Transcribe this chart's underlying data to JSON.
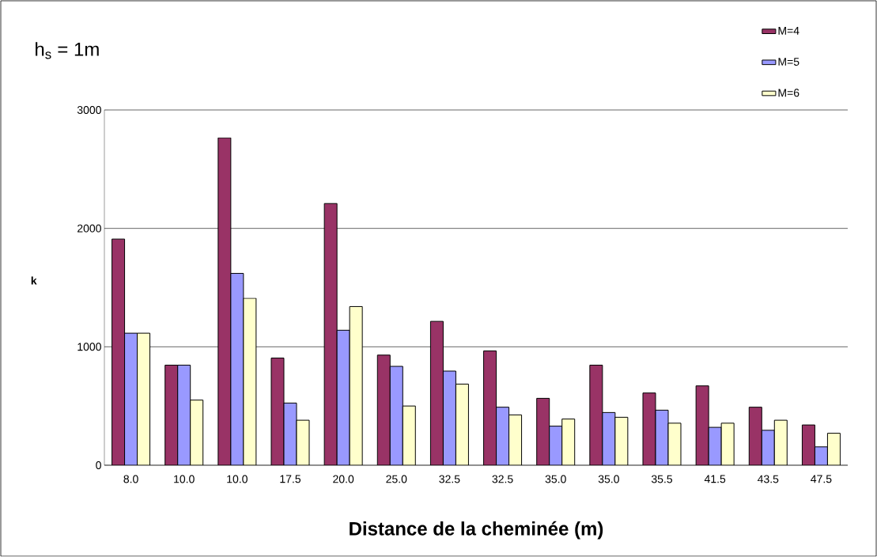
{
  "chart_data": {
    "type": "bar",
    "title": "h$_{s}$ = 1m",
    "xlabel": "Distance de la cheminée (m)",
    "ylabel": "k",
    "categories": [
      "8.0",
      "10.0",
      "10.0",
      "17.5",
      "20.0",
      "25.0",
      "32.5",
      "32.5",
      "35.0",
      "35.0",
      "35.5",
      "41.5",
      "43.5",
      "47.5"
    ],
    "series": [
      {
        "name": "M=4",
        "color": "#993366",
        "values": [
          1910,
          845,
          2765,
          905,
          2210,
          930,
          1215,
          965,
          565,
          845,
          610,
          670,
          490,
          340
        ]
      },
      {
        "name": "M=5",
        "color": "#9999ff",
        "values": [
          1115,
          845,
          1620,
          525,
          1140,
          835,
          795,
          490,
          330,
          445,
          465,
          320,
          295,
          155
        ]
      },
      {
        "name": "M=6",
        "color": "#ffffcc",
        "values": [
          1115,
          550,
          1410,
          380,
          1340,
          500,
          685,
          425,
          390,
          405,
          355,
          355,
          380,
          270
        ]
      }
    ],
    "ylim": [
      0,
      3000
    ],
    "yticks": [
      0,
      1000,
      2000,
      3000
    ],
    "grid": "y",
    "legend": "top right"
  }
}
